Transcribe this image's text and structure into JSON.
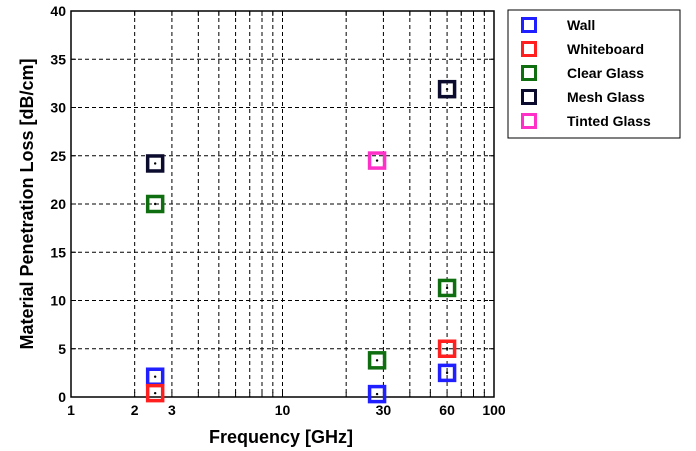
{
  "chart_data": {
    "type": "scatter",
    "xlabel": "Frequency [GHz]",
    "ylabel": "Material Penetration Loss [dB/cm]",
    "xscale": "log",
    "xlim": [
      1,
      100
    ],
    "ylim": [
      0,
      40
    ],
    "grid": true,
    "grid_style": "dashed",
    "legend_position": "outside-top-right",
    "marker": "square",
    "x_tick_labels": [
      "1",
      "2",
      "3",
      "10",
      "30",
      "60",
      "100"
    ],
    "x_tick_values": [
      1,
      2,
      3,
      10,
      30,
      60,
      100
    ],
    "y_tick_labels": [
      "0",
      "5",
      "10",
      "15",
      "20",
      "25",
      "30",
      "35",
      "40"
    ],
    "y_tick_values": [
      0,
      5,
      10,
      15,
      20,
      25,
      30,
      35,
      40
    ],
    "series": [
      {
        "name": "Wall",
        "color": "#1f1fff",
        "points": [
          [
            2.5,
            2.1
          ],
          [
            28,
            0.3
          ],
          [
            60,
            2.5
          ]
        ]
      },
      {
        "name": "Whiteboard",
        "color": "#ff1f1f",
        "points": [
          [
            2.5,
            0.4
          ],
          [
            60,
            5.0
          ]
        ]
      },
      {
        "name": "Clear Glass",
        "color": "#0f6e0f",
        "points": [
          [
            2.5,
            20.0
          ],
          [
            28,
            3.8
          ],
          [
            60,
            11.3
          ]
        ]
      },
      {
        "name": "Mesh Glass",
        "color": "#0b0b2e",
        "points": [
          [
            2.5,
            24.2
          ],
          [
            60,
            31.9
          ]
        ]
      },
      {
        "name": "Tinted Glass",
        "color": "#ff30c8",
        "points": [
          [
            28,
            24.5
          ]
        ]
      }
    ]
  }
}
